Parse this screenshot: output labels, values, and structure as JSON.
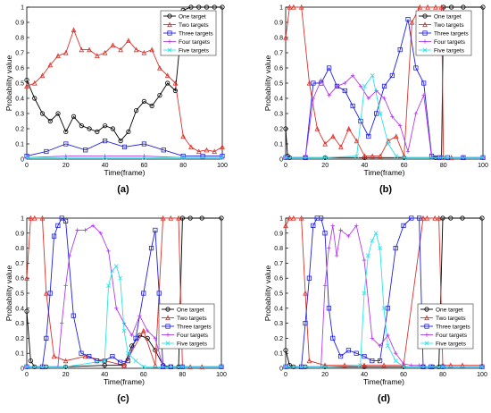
{
  "colors": {
    "one_target": "#000000",
    "two_targets": "#d9322a",
    "three_targets": "#1f1fe0",
    "four_targets": "#b33ce8",
    "five_targets": "#2ee0ea",
    "legend_border": "#333333"
  },
  "chart_data": [
    {
      "type": "line",
      "panel_label": "(a)",
      "xlabel": "Time(frame)",
      "ylabel": "Probability value",
      "xlim": [
        0,
        100
      ],
      "ylim": [
        0,
        1
      ],
      "xticks": [
        "0",
        "20",
        "40",
        "60",
        "80",
        "100"
      ],
      "yticks": [
        "0",
        "0.1",
        "0.2",
        "0.3",
        "0.4",
        "0.5",
        "0.6",
        "0.7",
        "0.8",
        "0.9",
        "1"
      ],
      "grid": false,
      "legend": "top-right",
      "series": [
        {
          "name": "One target",
          "x": [
            0,
            4,
            8,
            12,
            16,
            20,
            24,
            28,
            32,
            36,
            40,
            44,
            48,
            52,
            56,
            60,
            64,
            68,
            72,
            76,
            80,
            84,
            88,
            92,
            96,
            100
          ],
          "values": [
            0.52,
            0.4,
            0.3,
            0.25,
            0.3,
            0.18,
            0.28,
            0.22,
            0.2,
            0.18,
            0.22,
            0.2,
            0.12,
            0.18,
            0.32,
            0.38,
            0.35,
            0.42,
            0.5,
            0.45,
            0.98,
            1,
            1,
            1,
            1,
            1
          ]
        },
        {
          "name": "Two targets",
          "x": [
            0,
            4,
            8,
            12,
            16,
            20,
            24,
            28,
            32,
            36,
            40,
            44,
            48,
            52,
            56,
            60,
            64,
            68,
            72,
            76,
            80,
            84,
            88,
            92,
            96,
            100
          ],
          "values": [
            0.48,
            0.5,
            0.55,
            0.62,
            0.68,
            0.7,
            0.85,
            0.72,
            0.72,
            0.68,
            0.7,
            0.75,
            0.72,
            0.78,
            0.72,
            0.7,
            0.72,
            0.6,
            0.55,
            0.5,
            0.15,
            0.08,
            0.05,
            0.06,
            0.05,
            0.08
          ]
        },
        {
          "name": "Three targets",
          "x": [
            0,
            10,
            20,
            30,
            40,
            50,
            60,
            70,
            80,
            90,
            100
          ],
          "values": [
            0.02,
            0.05,
            0.1,
            0.06,
            0.12,
            0.08,
            0.1,
            0.06,
            0.02,
            0.02,
            0.02
          ]
        },
        {
          "name": "Four targets",
          "x": [
            0,
            20,
            40,
            60,
            80,
            100
          ],
          "values": [
            0.01,
            0.02,
            0.02,
            0.02,
            0.01,
            0.01
          ]
        },
        {
          "name": "Five targets",
          "x": [
            0,
            20,
            40,
            60,
            80,
            100
          ],
          "values": [
            0.01,
            0.01,
            0.01,
            0.01,
            0.01,
            0.01
          ]
        }
      ]
    },
    {
      "type": "line",
      "panel_label": "(b)",
      "xlabel": "Time(frame)",
      "ylabel": "Probability value",
      "xlim": [
        0,
        100
      ],
      "ylim": [
        0,
        1
      ],
      "xticks": [
        "0",
        "20",
        "40",
        "60",
        "80",
        "100"
      ],
      "yticks": [
        "0",
        "0.1",
        "0.2",
        "0.3",
        "0.4",
        "0.5",
        "0.6",
        "0.7",
        "0.8",
        "0.9",
        "1"
      ],
      "grid": false,
      "legend": "top-right",
      "series": [
        {
          "name": "One target",
          "x": [
            0,
            1,
            2,
            10,
            20,
            40,
            60,
            76,
            79,
            80,
            84,
            90,
            100
          ],
          "values": [
            0.2,
            0.02,
            0.01,
            0.01,
            0.01,
            0.01,
            0.01,
            0.01,
            0.01,
            1,
            1,
            1,
            1
          ]
        },
        {
          "name": "Two targets",
          "x": [
            0,
            2,
            4,
            8,
            12,
            16,
            20,
            24,
            28,
            32,
            36,
            40,
            44,
            48,
            52,
            56,
            60,
            64,
            68,
            72,
            76,
            79,
            80,
            84,
            90,
            100
          ],
          "values": [
            0.8,
            1,
            1,
            1,
            0.5,
            0.2,
            0.1,
            0.15,
            0.08,
            0.2,
            0.12,
            0.02,
            0.02,
            0.02,
            0.12,
            0.15,
            0.02,
            0.9,
            1,
            1,
            1,
            1,
            0.01,
            0.01,
            0.01,
            0.01
          ]
        },
        {
          "name": "Three targets",
          "x": [
            0,
            10,
            14,
            18,
            22,
            26,
            30,
            34,
            38,
            42,
            46,
            50,
            54,
            58,
            62,
            66,
            70,
            74,
            78,
            82,
            90,
            100
          ],
          "values": [
            0.01,
            0.01,
            0.5,
            0.5,
            0.6,
            0.48,
            0.45,
            0.35,
            0.25,
            0.15,
            0.3,
            0.48,
            0.55,
            0.72,
            0.92,
            0.6,
            0.5,
            0.02,
            0.01,
            0.01,
            0.01,
            0.01
          ]
        },
        {
          "name": "Four targets",
          "x": [
            0,
            10,
            14,
            18,
            22,
            26,
            30,
            34,
            38,
            42,
            46,
            50,
            54,
            58,
            62,
            66,
            70,
            74,
            78,
            90,
            100
          ],
          "values": [
            0.01,
            0.01,
            0.4,
            0.52,
            0.42,
            0.48,
            0.5,
            0.55,
            0.48,
            0.4,
            0.45,
            0.4,
            0.28,
            0.22,
            0.05,
            0.3,
            0.42,
            0.01,
            0.01,
            0.01,
            0.01
          ]
        },
        {
          "name": "Five targets",
          "x": [
            0,
            20,
            36,
            40,
            44,
            48,
            52,
            56,
            60,
            80,
            100
          ],
          "values": [
            0.01,
            0.01,
            0.02,
            0.48,
            0.55,
            0.3,
            0.1,
            0.02,
            0.01,
            0.01,
            0.01
          ]
        }
      ]
    },
    {
      "type": "line",
      "panel_label": "(c)",
      "xlabel": "Time(frame)",
      "ylabel": "Probability value",
      "xlim": [
        0,
        100
      ],
      "ylim": [
        0,
        1
      ],
      "xticks": [
        "0",
        "20",
        "40",
        "60",
        "80",
        "100"
      ],
      "yticks": [
        "0",
        "0.1",
        "0.2",
        "0.3",
        "0.4",
        "0.5",
        "0.6",
        "0.7",
        "0.8",
        "0.9",
        "1"
      ],
      "grid": false,
      "legend": "center-right",
      "series": [
        {
          "name": "One target",
          "x": [
            0,
            2,
            4,
            10,
            20,
            40,
            50,
            54,
            58,
            62,
            66,
            70,
            74,
            78,
            80,
            84,
            90,
            100
          ],
          "values": [
            0.38,
            0.05,
            0.01,
            0.01,
            0.01,
            0.02,
            0.02,
            0.15,
            0.22,
            0.2,
            0.12,
            0.02,
            0.01,
            0.01,
            1,
            1,
            1,
            1
          ]
        },
        {
          "name": "Two targets",
          "x": [
            0,
            2,
            4,
            8,
            10,
            14,
            20,
            30,
            40,
            50,
            60,
            66,
            70,
            74,
            78,
            80,
            84,
            90,
            100
          ],
          "values": [
            0.6,
            1,
            1,
            1,
            0.5,
            0.08,
            0.05,
            0.08,
            0.05,
            0.02,
            0.25,
            0.02,
            1,
            1,
            1,
            0.01,
            0.01,
            0.01,
            0.01
          ]
        },
        {
          "name": "Three targets",
          "x": [
            0,
            8,
            10,
            12,
            14,
            16,
            18,
            20,
            24,
            28,
            32,
            36,
            40,
            44,
            48,
            52,
            56,
            60,
            64,
            66,
            68,
            70,
            74,
            80,
            100
          ],
          "values": [
            0.01,
            0.01,
            0.2,
            0.5,
            0.88,
            0.95,
            1,
            0.98,
            0.35,
            0.1,
            0.08,
            0.05,
            0.05,
            0.08,
            0.04,
            0.05,
            0.2,
            0.5,
            0.8,
            0.92,
            0.5,
            0.01,
            0.01,
            0.01,
            0.01
          ]
        },
        {
          "name": "Four targets",
          "x": [
            0,
            16,
            18,
            20,
            22,
            26,
            30,
            34,
            38,
            42,
            46,
            50,
            54,
            58,
            62,
            66,
            70,
            80,
            100
          ],
          "values": [
            0.01,
            0.01,
            0.3,
            0.55,
            0.75,
            0.92,
            0.92,
            0.95,
            0.9,
            0.78,
            0.4,
            0.3,
            0.22,
            0.35,
            0.25,
            0.2,
            0.01,
            0.01,
            0.01
          ]
        },
        {
          "name": "Five targets",
          "x": [
            0,
            20,
            40,
            42,
            44,
            46,
            48,
            50,
            52,
            56,
            60,
            80,
            100
          ],
          "values": [
            0.01,
            0.01,
            0.05,
            0.55,
            0.65,
            0.68,
            0.6,
            0.25,
            0.1,
            0.05,
            0.01,
            0.01,
            0.01
          ]
        }
      ]
    },
    {
      "type": "line",
      "panel_label": "(d)",
      "xlabel": "Time(frame)",
      "ylabel": "Probability value",
      "xlim": [
        0,
        100
      ],
      "ylim": [
        0,
        1
      ],
      "xticks": [
        "0",
        "20",
        "40",
        "60",
        "80",
        "100"
      ],
      "yticks": [
        "0",
        "0.1",
        "0.2",
        "0.3",
        "0.4",
        "0.5",
        "0.6",
        "0.7",
        "0.8",
        "0.9",
        "1"
      ],
      "grid": false,
      "legend": "center-right",
      "series": [
        {
          "name": "One target",
          "x": [
            0,
            2,
            4,
            10,
            20,
            40,
            60,
            70,
            75,
            78,
            80,
            84,
            90,
            100
          ],
          "values": [
            0.12,
            0.02,
            0.01,
            0.01,
            0.01,
            0.01,
            0.01,
            0.01,
            0.01,
            0.01,
            1,
            1,
            1,
            1
          ]
        },
        {
          "name": "Two targets",
          "x": [
            0,
            2,
            4,
            8,
            10,
            12,
            20,
            30,
            40,
            50,
            60,
            70,
            72,
            76,
            78,
            80,
            84,
            90,
            100
          ],
          "values": [
            0.95,
            1,
            1,
            1,
            0.5,
            0.05,
            0.02,
            0.02,
            0.02,
            0.02,
            0.02,
            1,
            1,
            1,
            1,
            0.02,
            0.02,
            0.02,
            0.02
          ]
        },
        {
          "name": "Three targets",
          "x": [
            0,
            8,
            10,
            12,
            14,
            16,
            18,
            20,
            22,
            24,
            28,
            32,
            36,
            40,
            44,
            48,
            52,
            56,
            60,
            64,
            68,
            70,
            74,
            80,
            100
          ],
          "values": [
            0.01,
            0.01,
            0.3,
            0.6,
            0.95,
            1,
            1,
            0.9,
            0.4,
            0.2,
            0.08,
            0.12,
            0.1,
            0.08,
            0.05,
            0.05,
            0.4,
            0.8,
            0.95,
            1,
            1,
            0.01,
            0.01,
            0.01,
            0.01
          ]
        },
        {
          "name": "Four targets",
          "x": [
            0,
            18,
            20,
            22,
            24,
            26,
            28,
            32,
            36,
            40,
            44,
            48,
            52,
            56,
            60,
            64,
            68,
            70,
            80,
            100
          ],
          "values": [
            0.01,
            0.01,
            0.55,
            0.8,
            0.95,
            0.75,
            0.92,
            0.88,
            0.95,
            0.72,
            0.2,
            0.15,
            0.22,
            0.1,
            0.03,
            0.02,
            0.02,
            0.01,
            0.01,
            0.01
          ]
        },
        {
          "name": "Five targets",
          "x": [
            0,
            20,
            38,
            40,
            42,
            44,
            46,
            48,
            50,
            52,
            56,
            60,
            80,
            100
          ],
          "values": [
            0.01,
            0.01,
            0.02,
            0.5,
            0.75,
            0.85,
            0.9,
            0.8,
            0.4,
            0.15,
            0.05,
            0.01,
            0.01,
            0.01
          ]
        }
      ]
    }
  ]
}
